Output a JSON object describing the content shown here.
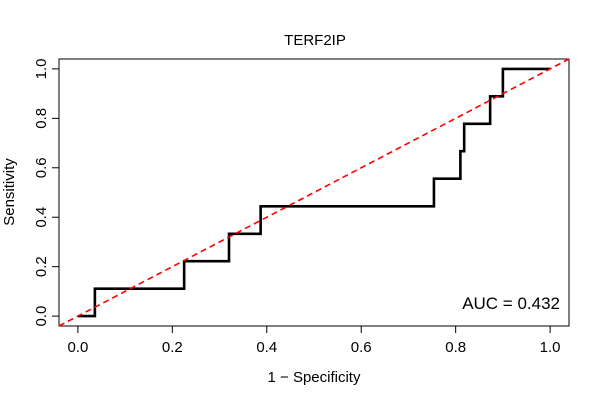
{
  "chart_data": {
    "type": "line",
    "title": "TERF2IP",
    "xlabel": "1 − Specificity",
    "ylabel": "Sensitivity",
    "xlim": [
      -0.04,
      1.04
    ],
    "ylim": [
      -0.04,
      1.04
    ],
    "x_ticks": [
      0.0,
      0.2,
      0.4,
      0.6,
      0.8,
      1.0
    ],
    "x_tick_labels": [
      "0.0",
      "0.2",
      "0.4",
      "0.6",
      "0.8",
      "1.0"
    ],
    "y_ticks": [
      0.0,
      0.2,
      0.4,
      0.6,
      0.8,
      1.0
    ],
    "y_tick_labels": [
      "0.0",
      "0.2",
      "0.4",
      "0.6",
      "0.8",
      "1.0"
    ],
    "grid": false,
    "series": [
      {
        "style": "solid",
        "color": "#000000",
        "x": [
          0.0,
          0.036,
          0.036,
          0.225,
          0.225,
          0.32,
          0.32,
          0.387,
          0.387,
          0.754,
          0.754,
          0.81,
          0.81,
          0.818,
          0.818,
          0.873,
          0.873,
          0.9,
          0.9,
          1.0
        ],
        "y": [
          0.0,
          0.0,
          0.111,
          0.111,
          0.222,
          0.222,
          0.333,
          0.333,
          0.444,
          0.444,
          0.556,
          0.556,
          0.667,
          0.667,
          0.778,
          0.778,
          0.889,
          0.889,
          1.0,
          1.0
        ]
      },
      {
        "style": "dashed",
        "color": "#ff0000",
        "x": [
          -0.04,
          1.04
        ],
        "y": [
          -0.04,
          1.04
        ]
      }
    ],
    "annotation": "AUC = 0.432"
  }
}
